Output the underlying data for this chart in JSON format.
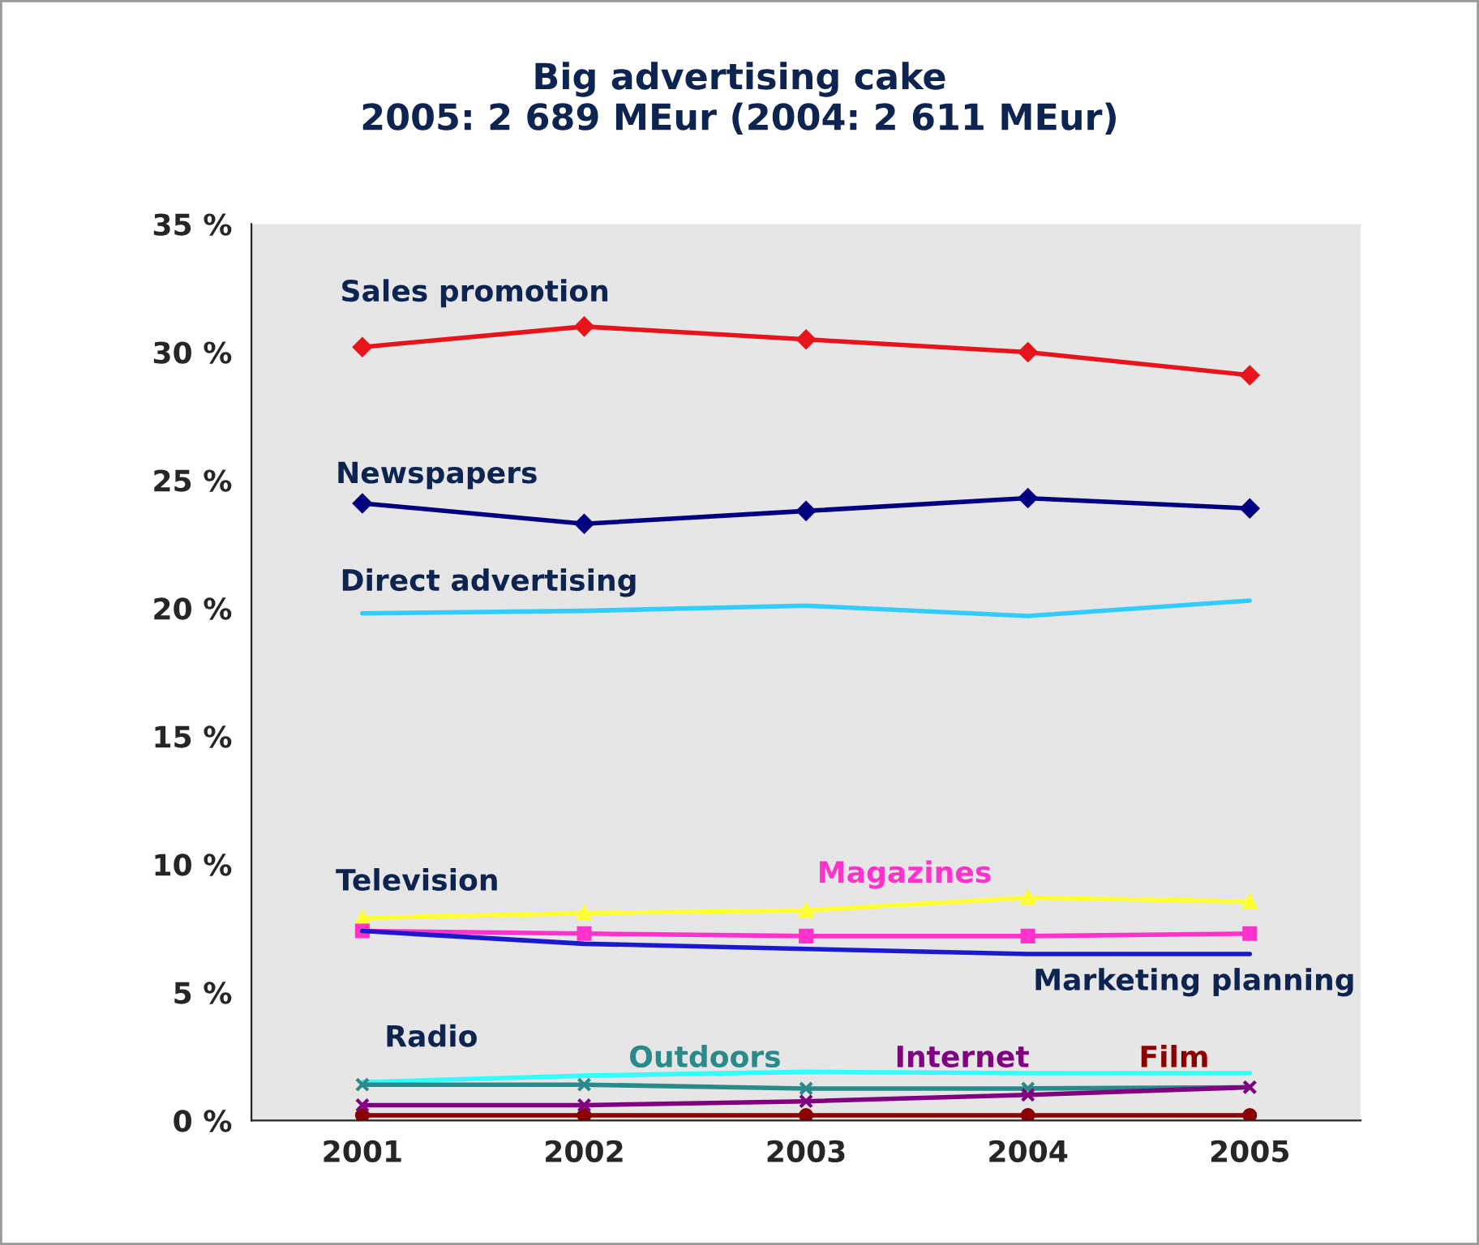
{
  "chart_data": {
    "type": "line",
    "title": "Big advertising cake\n2005: 2 689 MEur (2004: 2 611 MEur)",
    "categories": [
      "2001",
      "2002",
      "2003",
      "2004",
      "2005"
    ],
    "series": [
      {
        "name": "Sales promotion",
        "color": "#e8141b",
        "marker": "diamond",
        "values": [
          30.2,
          31.0,
          30.5,
          30.0,
          29.1
        ]
      },
      {
        "name": "Newspapers",
        "color": "#000080",
        "marker": "diamond",
        "values": [
          24.1,
          23.3,
          23.8,
          24.3,
          23.9
        ]
      },
      {
        "name": "Direct advertising",
        "color": "#33ccff",
        "marker": "none",
        "values": [
          19.8,
          19.9,
          20.1,
          19.7,
          20.3
        ]
      },
      {
        "name": "Television",
        "color": "#ffff33",
        "marker": "triangle",
        "values": [
          7.9,
          8.1,
          8.2,
          8.7,
          8.55
        ]
      },
      {
        "name": "Magazines",
        "color": "#ff33cc",
        "marker": "square",
        "values": [
          7.4,
          7.3,
          7.2,
          7.2,
          7.3
        ]
      },
      {
        "name": "Marketing planning",
        "color": "#1a1acc",
        "marker": "none",
        "values": [
          7.4,
          6.9,
          6.7,
          6.5,
          6.5
        ]
      },
      {
        "name": "Radio",
        "color": "#33ffff",
        "marker": "none",
        "values": [
          1.5,
          1.75,
          1.9,
          1.85,
          1.85
        ]
      },
      {
        "name": "Outdoors",
        "color": "#2a8a8a",
        "marker": "cross",
        "values": [
          1.4,
          1.4,
          1.25,
          1.25,
          1.3
        ]
      },
      {
        "name": "Internet",
        "color": "#800080",
        "marker": "cross",
        "values": [
          0.6,
          0.6,
          0.75,
          1.0,
          1.3
        ]
      },
      {
        "name": "Film",
        "color": "#8b0000",
        "marker": "circle",
        "values": [
          0.2,
          0.2,
          0.2,
          0.2,
          0.2
        ]
      }
    ],
    "ylim": [
      0,
      35
    ],
    "yticks": [
      {
        "value": 0,
        "label": "0 %"
      },
      {
        "value": 5,
        "label": "5 %"
      },
      {
        "value": 10,
        "label": "10 %"
      },
      {
        "value": 15,
        "label": "15 %"
      },
      {
        "value": 20,
        "label": "20 %"
      },
      {
        "value": 25,
        "label": "25 %"
      },
      {
        "value": 30,
        "label": "30 %"
      },
      {
        "value": 35,
        "label": "35 %"
      }
    ],
    "grid": false,
    "legend": false
  }
}
